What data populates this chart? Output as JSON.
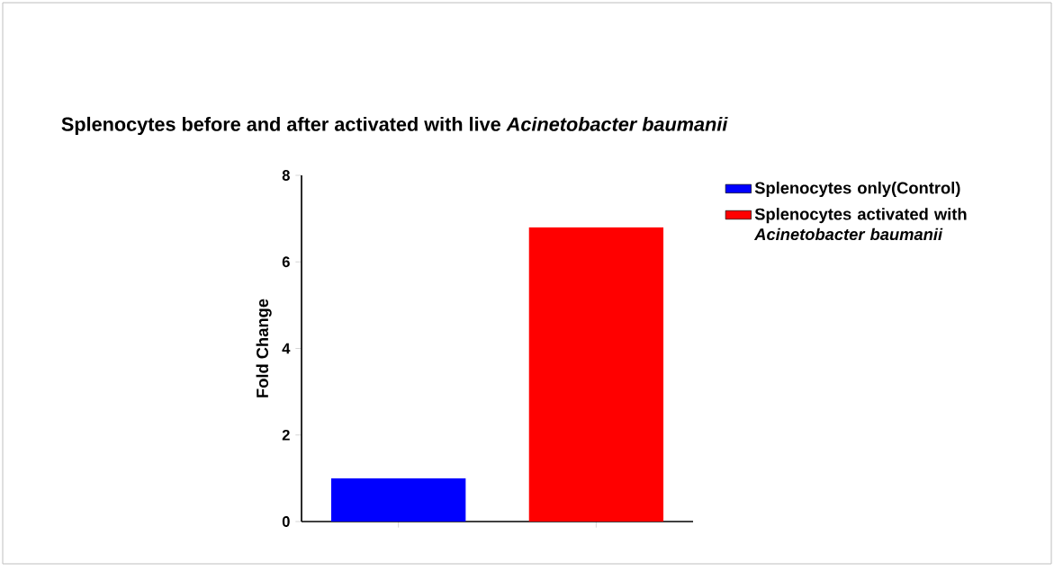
{
  "chart_data": {
    "type": "bar",
    "title": "Splenocytes before and after activated with live *Acinetobacter baumanii*",
    "ylabel": "Fold Change",
    "categories": [
      null,
      null
    ],
    "series": [
      {
        "name": "Splenocytes only(Control)",
        "color": "#0000ff",
        "values": [
          1.0,
          null
        ]
      },
      {
        "name": "Splenocytes activated with *Acinetobacter baumanii*",
        "color": "#ff0000",
        "values": [
          null,
          6.8
        ]
      }
    ],
    "ylim": [
      0,
      8
    ],
    "yticks": [
      0,
      2,
      4,
      6,
      8
    ],
    "legend": "top right"
  }
}
